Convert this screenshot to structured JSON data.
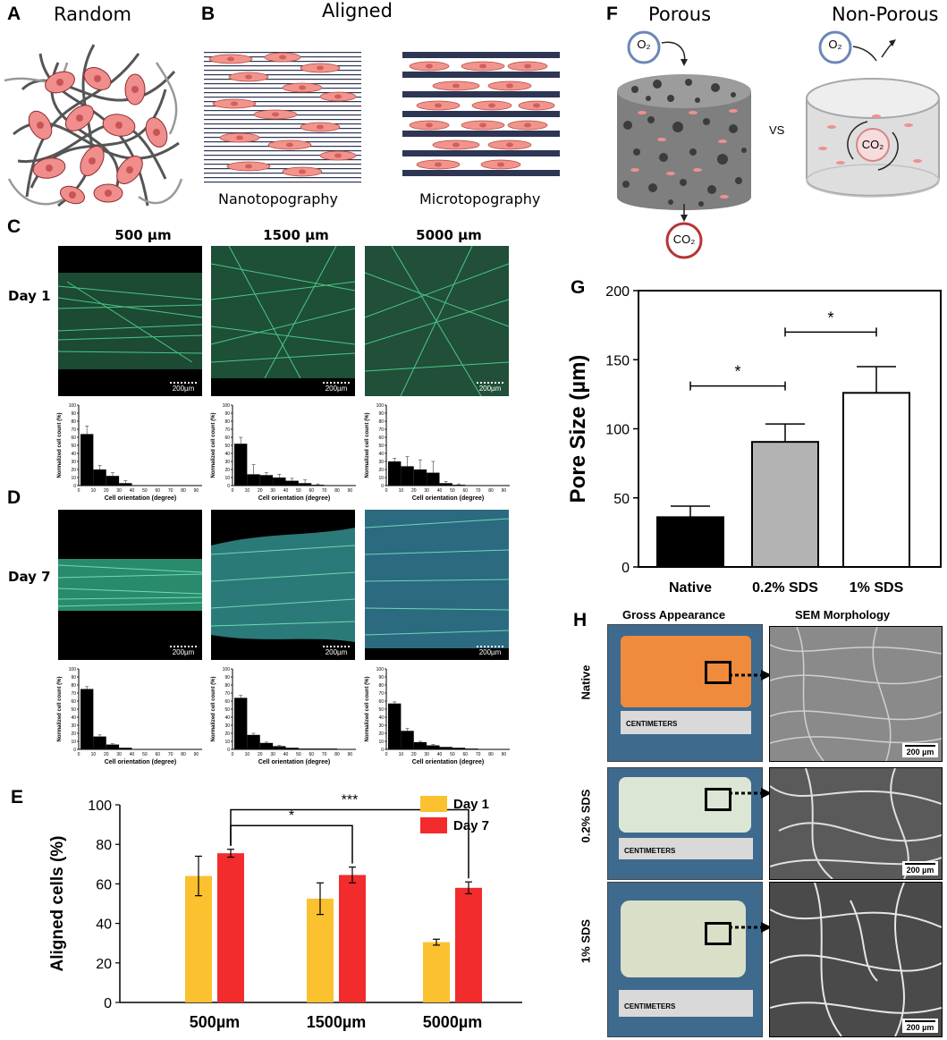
{
  "panels": {
    "A": {
      "label": "A",
      "title": "Random"
    },
    "B": {
      "label": "B",
      "title": "Aligned",
      "left_caption": "Nanotopography",
      "right_caption": "Microtopography"
    },
    "F": {
      "label": "F",
      "left_title": "Porous",
      "right_title": "Non-Porous",
      "vs": "VS",
      "o2": "O₂",
      "co2": "CO₂"
    },
    "C": {
      "label": "C",
      "row_label": "Day 1"
    },
    "D": {
      "label": "D",
      "row_label": "Day 7"
    },
    "columns": [
      "500 µm",
      "1500 µm",
      "5000 µm"
    ],
    "scale_text": "200µm",
    "E": {
      "label": "E"
    },
    "G": {
      "label": "G"
    },
    "H": {
      "label": "H",
      "col_left": "Gross Appearance",
      "col_right": "SEM Morphology",
      "rows": [
        "Native",
        "0.2% SDS",
        "1% SDS"
      ],
      "ruler_text": "CENTIMETERS",
      "sem_scale": "200 µm"
    }
  },
  "chart_data": [
    {
      "id": "hist_day1_500",
      "type": "bar",
      "xlabel": "Cell orientation (degree)",
      "ylabel": "Normalized cell count (%)",
      "x": [
        10,
        20,
        30,
        40,
        50,
        60,
        70,
        80,
        90
      ],
      "values": [
        64,
        20,
        12,
        3,
        0,
        0,
        0,
        0,
        0
      ],
      "errors": [
        10,
        5,
        4,
        3,
        0,
        0,
        0,
        0,
        0
      ],
      "ylim": [
        0,
        100
      ]
    },
    {
      "id": "hist_day1_1500",
      "type": "bar",
      "xlabel": "Cell orientation (degree)",
      "ylabel": "Normalized cell count (%)",
      "x": [
        10,
        20,
        30,
        40,
        50,
        60,
        70,
        80,
        90
      ],
      "values": [
        52,
        14,
        13,
        10,
        6,
        3,
        1,
        0,
        0
      ],
      "errors": [
        8,
        12,
        3,
        4,
        3,
        4,
        1,
        0,
        0
      ],
      "ylim": [
        0,
        100
      ]
    },
    {
      "id": "hist_day1_5000",
      "type": "bar",
      "xlabel": "Cell orientation (degree)",
      "ylabel": "Normalized cell count (%)",
      "x": [
        10,
        20,
        30,
        40,
        50,
        60,
        70,
        80,
        90
      ],
      "values": [
        30,
        24,
        20,
        16,
        3,
        1,
        0,
        0,
        0
      ],
      "errors": [
        4,
        12,
        12,
        14,
        2,
        1,
        0,
        0,
        0
      ],
      "ylim": [
        0,
        100
      ]
    },
    {
      "id": "hist_day7_500",
      "type": "bar",
      "xlabel": "Cell orientation (degree)",
      "ylabel": "Normalized cell count (%)",
      "x": [
        10,
        20,
        30,
        40,
        50,
        60,
        70,
        80,
        90
      ],
      "values": [
        75,
        16,
        6,
        2,
        0,
        0,
        0,
        0,
        0
      ],
      "errors": [
        3,
        2,
        1,
        0,
        0,
        0,
        0,
        0,
        0
      ],
      "ylim": [
        0,
        100
      ]
    },
    {
      "id": "hist_day7_1500",
      "type": "bar",
      "xlabel": "Cell orientation (degree)",
      "ylabel": "Normalized cell count (%)",
      "x": [
        10,
        20,
        30,
        40,
        50,
        60,
        70,
        80,
        90
      ],
      "values": [
        64,
        18,
        8,
        4,
        2,
        1,
        1,
        1,
        0
      ],
      "errors": [
        3,
        2,
        1,
        1,
        0,
        0,
        0,
        0,
        0
      ],
      "ylim": [
        0,
        100
      ]
    },
    {
      "id": "hist_day7_5000",
      "type": "bar",
      "xlabel": "Cell orientation (degree)",
      "ylabel": "Normalized cell count (%)",
      "x": [
        10,
        20,
        30,
        40,
        50,
        60,
        70,
        80,
        90
      ],
      "values": [
        57,
        23,
        9,
        5,
        3,
        2,
        1,
        0,
        0
      ],
      "errors": [
        2,
        3,
        1,
        1,
        0,
        0,
        0,
        0,
        0
      ],
      "ylim": [
        0,
        100
      ]
    },
    {
      "id": "panel_E",
      "type": "bar",
      "categories": [
        "500µm",
        "1500µm",
        "5000µm"
      ],
      "series": [
        {
          "name": "Day 1",
          "color": "#fcc12e",
          "values": [
            64,
            52.5,
            30.5
          ],
          "errors": [
            10,
            8,
            1.5
          ]
        },
        {
          "name": "Day 7",
          "color": "#f22c2c",
          "values": [
            75.5,
            64.5,
            58
          ],
          "errors": [
            2,
            4,
            3
          ]
        }
      ],
      "ylabel": "Aligned cells (%)",
      "ylim": [
        0,
        100
      ],
      "yticks": [
        0,
        20,
        40,
        60,
        80,
        100
      ],
      "legend": "top-right",
      "annotations": [
        {
          "from": "500µm",
          "to": "1500µm",
          "text": "*"
        },
        {
          "from": "500µm",
          "to": "5000µm",
          "text": "***"
        }
      ]
    },
    {
      "id": "panel_G",
      "type": "bar",
      "categories": [
        "Native",
        "0.2% SDS",
        "1% SDS"
      ],
      "values": [
        36,
        90.5,
        126
      ],
      "errors": [
        8,
        13,
        19
      ],
      "colors": [
        "#000000",
        "#b3b3b3",
        "#ffffff"
      ],
      "ylabel": "Pore Size (µm)",
      "ylim": [
        0,
        200
      ],
      "yticks": [
        0,
        50,
        100,
        150,
        200
      ],
      "annotations": [
        {
          "from": "Native",
          "to": "0.2% SDS",
          "text": "*"
        },
        {
          "from": "0.2% SDS",
          "to": "1% SDS",
          "text": "*"
        }
      ]
    }
  ]
}
